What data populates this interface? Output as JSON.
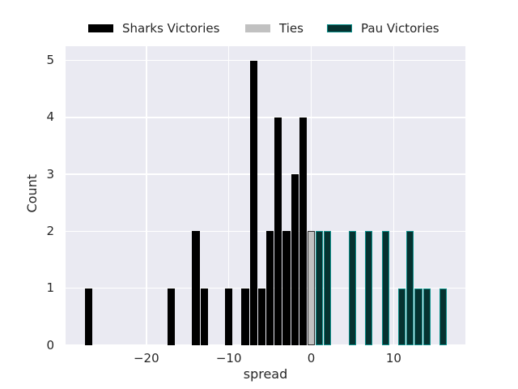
{
  "chart_data": {
    "type": "bar",
    "title": "",
    "xlabel": "spread",
    "ylabel": "Count",
    "grid": true,
    "legend_position": "above axes, horizontal row",
    "plot_background": "#eaeaf2",
    "grid_color": "#ffffff",
    "text_color": "#262626",
    "xlim": [
      -29.8,
      18.7
    ],
    "ylim": [
      0,
      5.25
    ],
    "xticks": [
      -20,
      -10,
      0,
      10
    ],
    "yticks": [
      0,
      1,
      2,
      3,
      4,
      5
    ],
    "bar_width": 0.9,
    "series": [
      {
        "name": "Sharks Victories",
        "fill": "#000000",
        "edge": "#000000",
        "x": [
          -27,
          -17,
          -14,
          -13,
          -10,
          -8,
          -7,
          -6,
          -5,
          -4,
          -3,
          -2,
          -1
        ],
        "y": [
          1,
          1,
          2,
          1,
          1,
          1,
          5,
          1,
          2,
          4,
          2,
          3,
          4
        ]
      },
      {
        "name": "Ties",
        "fill": "#c1c1c1",
        "edge": "#2f2f2f",
        "x": [
          0
        ],
        "y": [
          2
        ]
      },
      {
        "name": "Pau Victories",
        "fill": "#063230",
        "edge": "#0c8f8a",
        "x": [
          1,
          2,
          5,
          7,
          9,
          11,
          12,
          13,
          14,
          16
        ],
        "y": [
          2,
          2,
          2,
          2,
          2,
          1,
          2,
          1,
          1,
          1
        ]
      }
    ]
  }
}
